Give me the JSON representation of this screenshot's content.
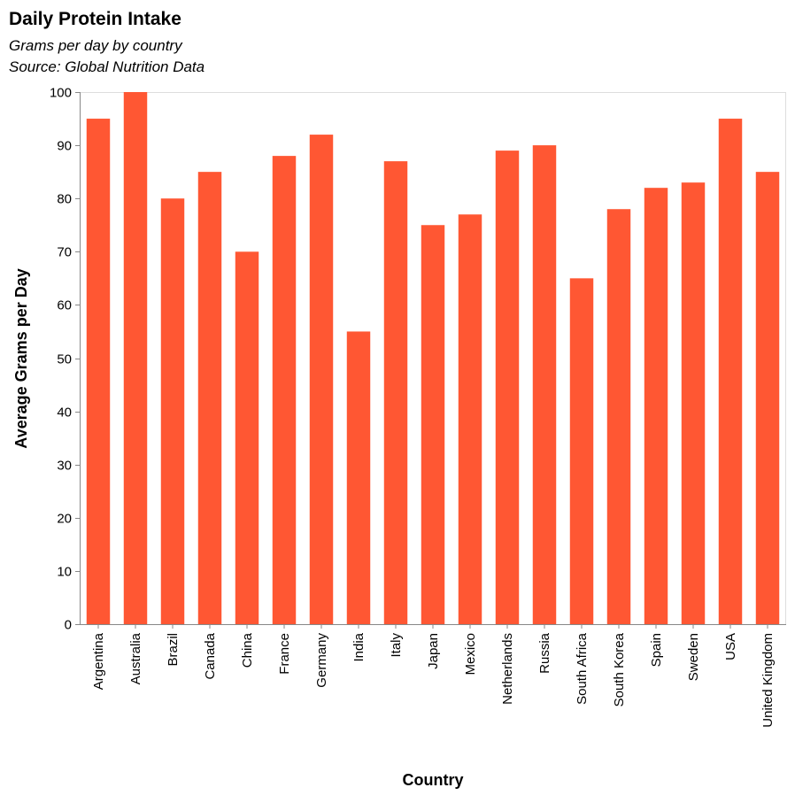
{
  "chart_data": {
    "type": "bar",
    "title": "Daily Protein Intake",
    "subtitle": [
      "Grams per day by country",
      "Source: Global Nutrition Data"
    ],
    "xlabel": "Country",
    "ylabel": "Average Grams per Day",
    "categories": [
      "Argentina",
      "Australia",
      "Brazil",
      "Canada",
      "China",
      "France",
      "Germany",
      "India",
      "Italy",
      "Japan",
      "Mexico",
      "Netherlands",
      "Russia",
      "South Africa",
      "South Korea",
      "Spain",
      "Sweden",
      "USA",
      "United Kingdom"
    ],
    "values": [
      95,
      100,
      80,
      85,
      70,
      88,
      92,
      55,
      87,
      75,
      77,
      89,
      90,
      65,
      78,
      82,
      83,
      95,
      85
    ],
    "ylim": [
      0,
      100
    ],
    "yticks": [
      0,
      10,
      20,
      30,
      40,
      50,
      60,
      70,
      80,
      90,
      100
    ],
    "grid": false,
    "bar_color": "#FF5733"
  }
}
